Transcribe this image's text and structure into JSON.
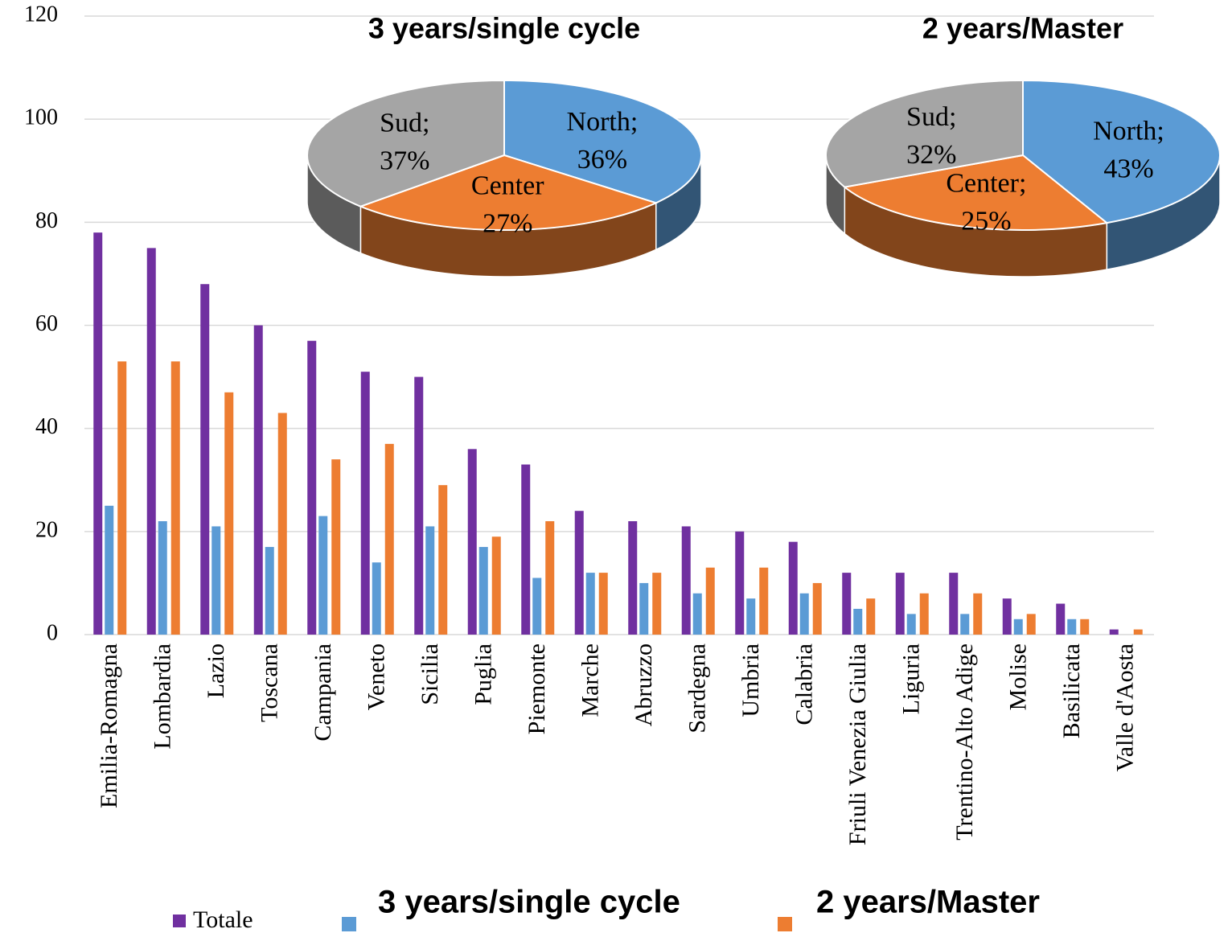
{
  "chart_data": [
    {
      "type": "bar",
      "categories": [
        "Emilia-Romagna",
        "Lombardia",
        "Lazio",
        "Toscana",
        "Campania",
        "Veneto",
        "Sicilia",
        "Puglia",
        "Piemonte",
        "Marche",
        "Abruzzo",
        "Sardegna",
        "Umbria",
        "Calabria",
        "Friuli Venezia Giulia",
        "Liguria",
        "Trentino-Alto Adige",
        "Molise",
        "Basilicata",
        "Valle d'Aosta"
      ],
      "series": [
        {
          "name": "Totale",
          "color": "#7030a0",
          "values": [
            78,
            75,
            68,
            60,
            57,
            51,
            50,
            36,
            33,
            24,
            22,
            21,
            20,
            18,
            12,
            12,
            12,
            7,
            6,
            1
          ]
        },
        {
          "name": "3 years/single cycle",
          "color": "#5b9bd5",
          "values": [
            25,
            22,
            21,
            17,
            23,
            14,
            21,
            17,
            11,
            12,
            10,
            8,
            7,
            8,
            5,
            4,
            4,
            3,
            3,
            0
          ]
        },
        {
          "name": "2 years/Master",
          "color": "#ed7d31",
          "values": [
            53,
            53,
            47,
            43,
            34,
            37,
            29,
            19,
            22,
            12,
            12,
            13,
            13,
            10,
            7,
            8,
            8,
            4,
            3,
            1
          ]
        }
      ],
      "ylim": [
        0,
        120
      ],
      "yticks": [
        0,
        20,
        40,
        60,
        80,
        100,
        120
      ],
      "grid": true
    },
    {
      "type": "pie",
      "title": "3 years/single cycle",
      "categories": [
        "North;",
        "Center",
        "Sud;"
      ],
      "values": [
        36,
        27,
        37
      ],
      "value_labels": [
        "36%",
        "27%",
        "37%"
      ],
      "colors": [
        "#5b9bd5",
        "#ed7d31",
        "#a5a5a5"
      ]
    },
    {
      "type": "pie",
      "title": "2 years/Master",
      "categories": [
        "North;",
        "Center;",
        "Sud;"
      ],
      "values": [
        43,
        25,
        32
      ],
      "value_labels": [
        "43%",
        "25%",
        "32%"
      ],
      "colors": [
        "#5b9bd5",
        "#ed7d31",
        "#a5a5a5"
      ]
    }
  ]
}
